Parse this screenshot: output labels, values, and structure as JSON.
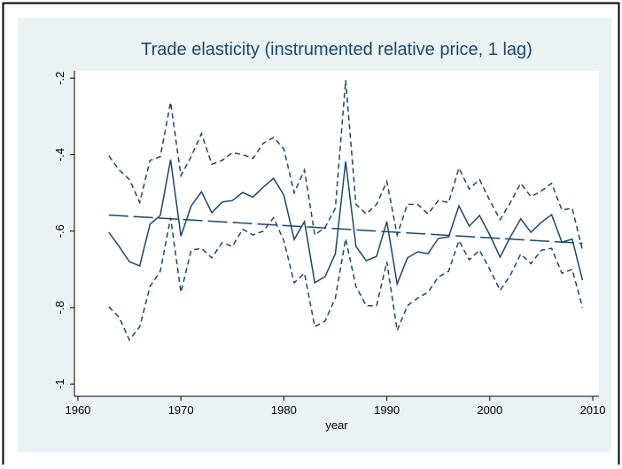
{
  "chart_data": {
    "type": "line",
    "title": "Trade elasticity (instrumented relative price, 1 lag)",
    "x_label": "year",
    "x": [
      1963,
      1964,
      1965,
      1966,
      1967,
      1968,
      1969,
      1970,
      1971,
      1972,
      1973,
      1974,
      1975,
      1976,
      1977,
      1978,
      1979,
      1980,
      1981,
      1982,
      1983,
      1984,
      1985,
      1986,
      1987,
      1988,
      1989,
      1990,
      1991,
      1992,
      1993,
      1994,
      1995,
      1996,
      1997,
      1998,
      1999,
      2000,
      2001,
      2002,
      2003,
      2004,
      2005,
      2006,
      2007,
      2008,
      2009
    ],
    "series": [
      {
        "color": "#1a476f",
        "dash": "solid",
        "values": [
          -0.603,
          -0.64,
          -0.68,
          -0.691,
          -0.582,
          -0.559,
          -0.413,
          -0.613,
          -0.534,
          -0.497,
          -0.552,
          -0.524,
          -0.52,
          -0.499,
          -0.511,
          -0.485,
          -0.462,
          -0.506,
          -0.622,
          -0.575,
          -0.735,
          -0.719,
          -0.659,
          -0.418,
          -0.64,
          -0.677,
          -0.666,
          -0.575,
          -0.738,
          -0.67,
          -0.654,
          -0.659,
          -0.619,
          -0.615,
          -0.534,
          -0.587,
          -0.559,
          -0.61,
          -0.668,
          -0.615,
          -0.568,
          -0.603,
          -0.577,
          -0.557,
          -0.629,
          -0.621,
          -0.728
        ]
      },
      {
        "color": "#1a476f",
        "dash": "short",
        "values": [
          -0.403,
          -0.44,
          -0.465,
          -0.525,
          -0.415,
          -0.405,
          -0.263,
          -0.455,
          -0.405,
          -0.345,
          -0.425,
          -0.415,
          -0.395,
          -0.4,
          -0.41,
          -0.37,
          -0.355,
          -0.385,
          -0.5,
          -0.44,
          -0.61,
          -0.59,
          -0.54,
          -0.205,
          -0.53,
          -0.555,
          -0.53,
          -0.47,
          -0.61,
          -0.53,
          -0.53,
          -0.555,
          -0.52,
          -0.525,
          -0.435,
          -0.49,
          -0.465,
          -0.52,
          -0.57,
          -0.525,
          -0.475,
          -0.51,
          -0.495,
          -0.475,
          -0.545,
          -0.54,
          -0.65
        ]
      },
      {
        "color": "#1a476f",
        "dash": "short",
        "values": [
          -0.798,
          -0.825,
          -0.885,
          -0.85,
          -0.745,
          -0.705,
          -0.565,
          -0.76,
          -0.65,
          -0.645,
          -0.67,
          -0.63,
          -0.64,
          -0.595,
          -0.61,
          -0.6,
          -0.565,
          -0.625,
          -0.735,
          -0.71,
          -0.85,
          -0.835,
          -0.775,
          -0.62,
          -0.745,
          -0.795,
          -0.795,
          -0.68,
          -0.86,
          -0.795,
          -0.775,
          -0.76,
          -0.72,
          -0.705,
          -0.625,
          -0.675,
          -0.65,
          -0.7,
          -0.755,
          -0.715,
          -0.66,
          -0.685,
          -0.65,
          -0.645,
          -0.71,
          -0.7,
          -0.8
        ]
      },
      {
        "color": "#1a476f",
        "dash": "long",
        "x": [
          1963,
          2009
        ],
        "values": [
          -0.558,
          -0.632
        ]
      }
    ],
    "xlim": [
      1959.66,
      2010.6
    ],
    "ylim": [
      -1.032,
      -0.181
    ],
    "xticks": [
      1960,
      1970,
      1980,
      1990,
      2000,
      2010
    ],
    "yticks": [
      {
        "value": -1,
        "label": "-1"
      },
      {
        "value": -0.8,
        "label": "-.8"
      },
      {
        "value": -0.6,
        "label": "-.6"
      },
      {
        "value": -0.4,
        "label": "-.4"
      },
      {
        "value": -0.2,
        "label": "-.2"
      }
    ],
    "grid": false
  }
}
